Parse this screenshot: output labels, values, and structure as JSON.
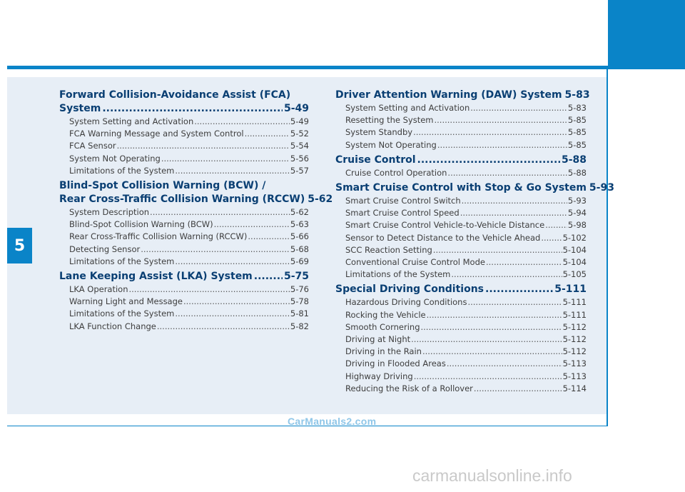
{
  "chapter": "5",
  "left_column": [
    {
      "lines": [
        "Forward Collision-Avoidance Assist (FCA)",
        "System"
      ],
      "page": "5-49",
      "items": [
        {
          "title": "System Setting and Activation",
          "page": "5-49"
        },
        {
          "title": "FCA Warning Message and System Control",
          "page": "5-52"
        },
        {
          "title": "FCA Sensor",
          "page": "5-54"
        },
        {
          "title": "System Not Operating",
          "page": "5-56"
        },
        {
          "title": "Limitations of the System",
          "page": "5-57"
        }
      ]
    },
    {
      "lines": [
        "Blind-Spot Collision Warning (BCW) /",
        "Rear Cross-Traffic Collision Warning (RCCW)"
      ],
      "page": "5-62",
      "items": [
        {
          "title": "System Description",
          "page": "5-62"
        },
        {
          "title": "Blind-Spot Collision Warning (BCW)",
          "page": "5-63"
        },
        {
          "title": "Rear Cross-Traffic Collision Warning (RCCW)",
          "page": "5-66"
        },
        {
          "title": "Detecting Sensor",
          "page": "5-68"
        },
        {
          "title": "Limitations of the System",
          "page": "5-69"
        }
      ]
    },
    {
      "lines": [
        "Lane Keeping Assist (LKA) System"
      ],
      "page": "5-75",
      "items": [
        {
          "title": "LKA Operation",
          "page": "5-76"
        },
        {
          "title": "Warning Light and Message",
          "page": "5-78"
        },
        {
          "title": "Limitations of the System",
          "page": "5-81"
        },
        {
          "title": "LKA Function Change",
          "page": "5-82"
        }
      ]
    }
  ],
  "right_column": [
    {
      "lines": [
        "Driver Attention Warning (DAW) System"
      ],
      "page": "5-83",
      "items": [
        {
          "title": "System Setting and Activation",
          "page": "5-83"
        },
        {
          "title": "Resetting the System",
          "page": "5-85"
        },
        {
          "title": "System Standby",
          "page": "5-85"
        },
        {
          "title": "System Not Operating",
          "page": "5-85"
        }
      ]
    },
    {
      "lines": [
        "Cruise Control"
      ],
      "page": "5-88",
      "items": [
        {
          "title": "Cruise Control Operation",
          "page": "5-88"
        }
      ]
    },
    {
      "lines": [
        "Smart Cruise Control with Stop & Go System"
      ],
      "page": "5-93",
      "items": [
        {
          "title": "Smart Cruise Control Switch",
          "page": "5-93"
        },
        {
          "title": "Smart Cruise Control Speed",
          "page": "5-94"
        },
        {
          "title": "Smart Cruise Control Vehicle-to-Vehicle Distance",
          "page": "5-98"
        },
        {
          "title": "Sensor to Detect Distance to the Vehicle Ahead",
          "page": "5-102"
        },
        {
          "title": "SCC Reaction Setting",
          "page": "5-104"
        },
        {
          "title": "Conventional Cruise Control Mode",
          "page": "5-104"
        },
        {
          "title": "Limitations of the System",
          "page": "5-105"
        }
      ]
    },
    {
      "lines": [
        "Special Driving Conditions"
      ],
      "page": "5-111",
      "items": [
        {
          "title": "Hazardous Driving Conditions",
          "page": "5-111"
        },
        {
          "title": "Rocking the Vehicle",
          "page": "5-111"
        },
        {
          "title": "Smooth Cornering",
          "page": "5-112"
        },
        {
          "title": "Driving at Night",
          "page": "5-112"
        },
        {
          "title": "Driving in the Rain",
          "page": "5-112"
        },
        {
          "title": "Driving in Flooded Areas",
          "page": "5-113"
        },
        {
          "title": "Highway Driving",
          "page": "5-113"
        },
        {
          "title": "Reducing the Risk of a Rollover",
          "page": "5-114"
        }
      ]
    }
  ],
  "watermark": "CarManuals2.com",
  "footer_watermark": "carmanualsonline.info",
  "colors": {
    "accent": "#0a84c8",
    "heading": "#0a3f73",
    "panel": "#e7eef6"
  }
}
